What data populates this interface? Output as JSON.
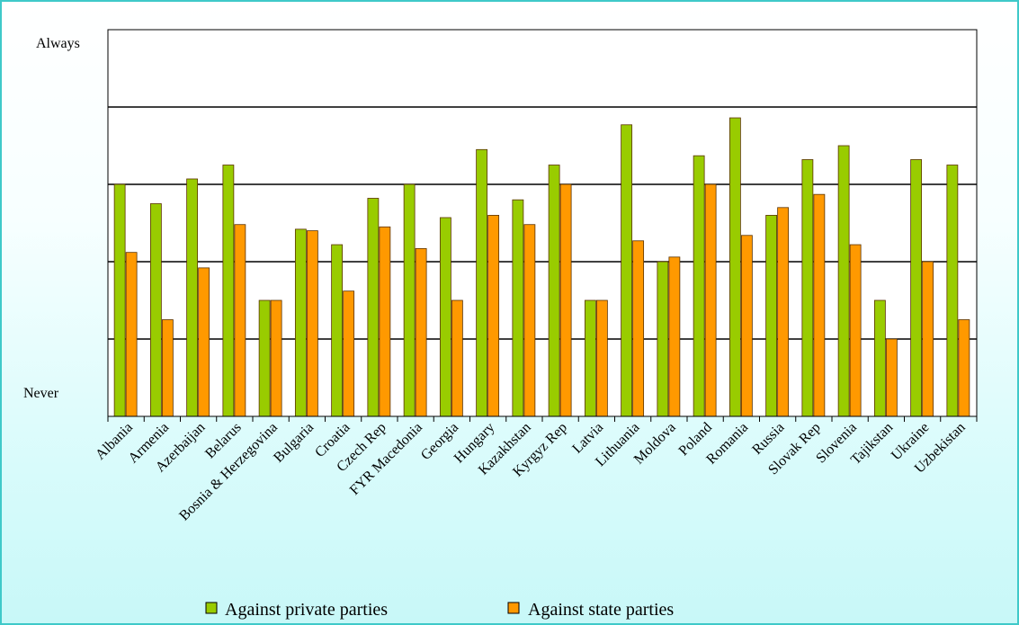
{
  "chart_data": {
    "type": "bar",
    "title": "",
    "xlabel": "",
    "ylabel": "",
    "y_tick_labels": {
      "top": "Always",
      "bottom": "Never"
    },
    "ylim": [
      0,
      5
    ],
    "grid": true,
    "legend_position": "bottom",
    "categories": [
      "Albania",
      "Armenia",
      "Azerbaijan",
      "Belarus",
      "Bosnia & Herzegovina",
      "Bulgaria",
      "Croatia",
      "Czech Rep",
      "FYR Macedonia",
      "Georgia",
      "Hungary",
      "Kazakhstan",
      "Kyrgyz Rep",
      "Latvia",
      "Lithuania",
      "Moldova",
      "Poland",
      "Romania",
      "Russia",
      "Slovak Rep",
      "Slovenia",
      "Tajikstan",
      "Ukraine",
      "Uzbekistan"
    ],
    "series": [
      {
        "name": "Against private parties",
        "color": "#99cc00",
        "values": [
          3.0,
          2.75,
          3.07,
          3.25,
          1.5,
          2.42,
          2.22,
          2.82,
          3.0,
          2.57,
          3.45,
          2.8,
          3.25,
          1.5,
          3.77,
          2.0,
          3.37,
          3.86,
          2.6,
          3.32,
          3.5,
          1.5,
          3.32,
          3.25
        ]
      },
      {
        "name": "Against state parties",
        "color": "#ff9900",
        "values": [
          2.12,
          1.25,
          1.92,
          2.48,
          1.5,
          2.4,
          1.62,
          2.45,
          2.17,
          1.5,
          2.6,
          2.48,
          3.0,
          1.5,
          2.27,
          2.06,
          3.0,
          2.34,
          2.7,
          2.87,
          2.22,
          1.0,
          2.0,
          1.25
        ]
      }
    ]
  }
}
